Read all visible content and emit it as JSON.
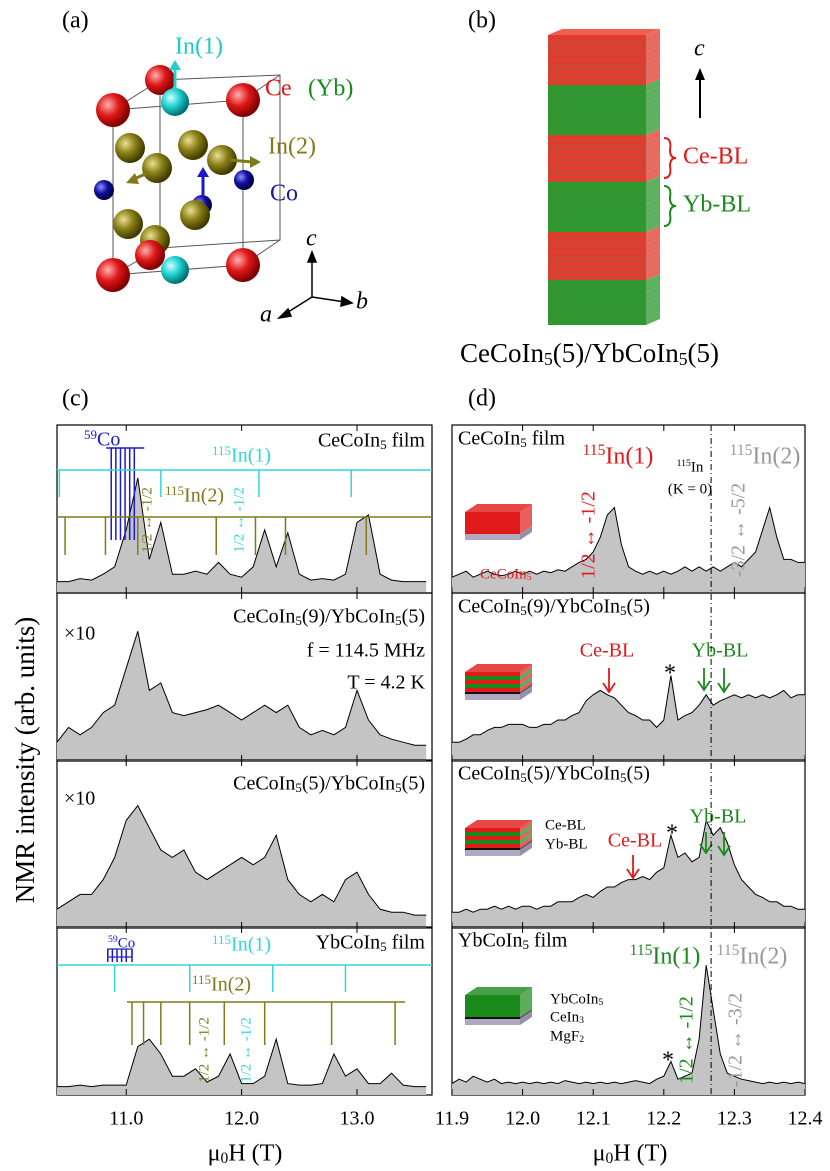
{
  "panel_a": {
    "label": "(a)",
    "in1": "In(1)",
    "ce": "Ce",
    "yb": "(Yb)",
    "in2": "In(2)",
    "co": "Co",
    "axis_c": "c",
    "axis_a": "a",
    "axis_b": "b"
  },
  "panel_b": {
    "label": "(b)",
    "axis_c": "c",
    "ce_bl": "Ce-BL",
    "yb_bl": "Yb-BL",
    "caption": "CeCoIn5(5)/YbCoIn5(5)"
  },
  "chart_data": [
    {
      "type": "line",
      "panel_label": "(c)",
      "y_label": "NMR intensity (arb. units)",
      "x_label": "μ0H (T)",
      "xlim": [
        10.4,
        13.65
      ],
      "xticks": [
        {
          "value": 11,
          "label": "11.0"
        },
        {
          "value": 12,
          "label": "12.0"
        },
        {
          "value": 13,
          "label": "13.0"
        }
      ],
      "ylim": [
        0,
        1
      ],
      "x": [
        10.4,
        10.5,
        10.6,
        10.7,
        10.8,
        10.9,
        11,
        11.1,
        11.2,
        11.3,
        11.4,
        11.5,
        11.6,
        11.7,
        11.8,
        11.9,
        12,
        12.1,
        12.2,
        12.3,
        12.4,
        12.5,
        12.6,
        12.7,
        12.8,
        12.9,
        13,
        13.1,
        13.2,
        13.3,
        13.4,
        13.5,
        13.6
      ],
      "series": [
        {
          "name": "CeCoIn5 film",
          "color": "#c4c4c4",
          "values": [
            0.05,
            0.05,
            0.07,
            0.06,
            0.1,
            0.15,
            0.4,
            0.75,
            0.2,
            0.45,
            0.1,
            0.1,
            0.12,
            0.1,
            0.18,
            0.1,
            0.08,
            0.15,
            0.4,
            0.15,
            0.38,
            0.1,
            0.06,
            0.07,
            0.06,
            0.1,
            0.45,
            0.5,
            0.1,
            0.06,
            0.05,
            0.05,
            0.05
          ],
          "markers": [
            {
              "color": "#1a1acc",
              "positions": [
                10.87,
                10.91,
                10.95,
                10.99,
                11.03,
                11.07
              ]
            },
            {
              "color": "#33d6d6",
              "positions": [
                10.42,
                11.3,
                12.15,
                12.95
              ]
            },
            {
              "color": "#807a1a",
              "positions": [
                10.47,
                10.82,
                11.1,
                11.78,
                12.12,
                12.38,
                13.08
              ]
            }
          ],
          "annotations": [
            {
              "text": "59Co",
              "color": "#1a1acc"
            },
            {
              "text": "115In(1)",
              "color": "#33d6d6"
            },
            {
              "text": "115In(2)",
              "color": "#807a1a"
            },
            {
              "text": "1/2 ↔ -1/2",
              "color": "#807a1a"
            },
            {
              "text": "1/2 ↔ -1/2",
              "color": "#33d6d6"
            }
          ]
        },
        {
          "name": "CeCoIn5(9)/YbCoIn5(5)",
          "color": "#c4c4c4",
          "values": [
            0.1,
            0.2,
            0.15,
            0.2,
            0.3,
            0.35,
            0.6,
            0.85,
            0.45,
            0.5,
            0.3,
            0.28,
            0.3,
            0.32,
            0.35,
            0.3,
            0.25,
            0.3,
            0.35,
            0.3,
            0.35,
            0.2,
            0.15,
            0.18,
            0.15,
            0.2,
            0.45,
            0.25,
            0.15,
            0.12,
            0.1,
            0.08,
            0.08
          ],
          "annotations": [
            {
              "text": "×10",
              "color": "#000000"
            },
            {
              "text": "f = 114.5 MHz",
              "color": "#000000"
            },
            {
              "text": "T = 4.2 K",
              "color": "#000000"
            }
          ]
        },
        {
          "name": "CeCoIn5(5)/YbCoIn5(5)",
          "color": "#c4c4c4",
          "values": [
            0.1,
            0.15,
            0.2,
            0.2,
            0.3,
            0.45,
            0.7,
            0.8,
            0.65,
            0.5,
            0.45,
            0.5,
            0.35,
            0.3,
            0.35,
            0.4,
            0.45,
            0.4,
            0.45,
            0.6,
            0.3,
            0.2,
            0.15,
            0.2,
            0.15,
            0.3,
            0.35,
            0.2,
            0.1,
            0.08,
            0.08,
            0.06,
            0.06
          ],
          "annotations": [
            {
              "text": "×10",
              "color": "#000000"
            }
          ]
        },
        {
          "name": "YbCoIn5 film",
          "color": "#c4c4c4",
          "values": [
            0.03,
            0.03,
            0.04,
            0.03,
            0.04,
            0.04,
            0.04,
            0.3,
            0.35,
            0.25,
            0.1,
            0.1,
            0.15,
            0.06,
            0.1,
            0.25,
            0.05,
            0.05,
            0.1,
            0.35,
            0.05,
            0.04,
            0.04,
            0.05,
            0.25,
            0.1,
            0.15,
            0.05,
            0.05,
            0.12,
            0.04,
            0.03,
            0.03
          ],
          "markers": [
            {
              "color": "#1a1acc",
              "positions": [
                10.84,
                10.88,
                10.92,
                10.96,
                11,
                11.05
              ]
            },
            {
              "color": "#33d6d6",
              "positions": [
                10.9,
                11.55,
                12.27,
                12.9
              ]
            },
            {
              "color": "#807a1a",
              "positions": [
                11.05,
                11.15,
                11.3,
                11.55,
                11.85,
                12.2,
                12.78,
                13.33
              ]
            }
          ],
          "annotations": [
            {
              "text": "59Co",
              "color": "#1a1acc"
            },
            {
              "text": "115In(1)",
              "color": "#33d6d6"
            },
            {
              "text": "115In(2)",
              "color": "#807a1a"
            },
            {
              "text": "1/2 ↔ -1/2",
              "color": "#807a1a"
            },
            {
              "text": "1/2 ↔ -1/2",
              "color": "#33d6d6"
            }
          ]
        }
      ]
    },
    {
      "type": "line",
      "panel_label": "(d)",
      "x_label": "μ0H (T)",
      "xlim": [
        11.9,
        12.4
      ],
      "xticks": [
        11.9,
        {
          "value": 12,
          "label": "12.0"
        },
        12.1,
        12.2,
        12.3,
        12.4
      ],
      "ylim": [
        0,
        1
      ],
      "ref_line": 12.267,
      "x": [
        11.9,
        11.91,
        11.92,
        11.93,
        11.94,
        11.95,
        11.96,
        11.97,
        11.98,
        11.99,
        12,
        12.01,
        12.02,
        12.03,
        12.04,
        12.05,
        12.06,
        12.07,
        12.08,
        12.09,
        12.1,
        12.11,
        12.12,
        12.13,
        12.14,
        12.15,
        12.16,
        12.17,
        12.18,
        12.19,
        12.2,
        12.21,
        12.22,
        12.23,
        12.24,
        12.25,
        12.26,
        12.27,
        12.28,
        12.29,
        12.3,
        12.31,
        12.32,
        12.33,
        12.34,
        12.35,
        12.36,
        12.37,
        12.38,
        12.39,
        12.4
      ],
      "series": [
        {
          "name": "CeCoIn5 film",
          "color": "#c4c4c4",
          "values": [
            0.08,
            0.1,
            0.12,
            0.08,
            0.1,
            0.12,
            0.1,
            0.09,
            0.1,
            0.12,
            0.1,
            0.12,
            0.1,
            0.12,
            0.11,
            0.13,
            0.12,
            0.15,
            0.18,
            0.2,
            0.25,
            0.35,
            0.5,
            0.55,
            0.3,
            0.15,
            0.12,
            0.1,
            0.12,
            0.1,
            0.12,
            0.1,
            0.12,
            0.15,
            0.12,
            0.15,
            0.12,
            0.15,
            0.12,
            0.15,
            0.18,
            0.15,
            0.2,
            0.25,
            0.4,
            0.55,
            0.35,
            0.2,
            0.2,
            0.18,
            0.18
          ],
          "annotations": [
            {
              "text": "115In(1)",
              "color": "#e01a1a"
            },
            {
              "text": "1/2 ↔ -1/2",
              "color": "#e01a1a"
            },
            {
              "text": "115In",
              "color": "#000000"
            },
            {
              "text": "(K = 0)",
              "color": "#000000"
            },
            {
              "text": "115In(2)",
              "color": "#999999"
            },
            {
              "text": "-3/2 ↔ -5/2",
              "color": "#999999"
            },
            {
              "text": "CeCoIn5",
              "color": "#e01a1a"
            }
          ]
        },
        {
          "name": "CeCoIn5(9)/YbCoIn5(5)",
          "color": "#c4c4c4",
          "values": [
            0.1,
            0.1,
            0.12,
            0.15,
            0.15,
            0.18,
            0.2,
            0.2,
            0.22,
            0.22,
            0.22,
            0.2,
            0.2,
            0.22,
            0.22,
            0.25,
            0.25,
            0.28,
            0.3,
            0.38,
            0.42,
            0.45,
            0.42,
            0.4,
            0.35,
            0.3,
            0.28,
            0.25,
            0.25,
            0.2,
            0.25,
            0.55,
            0.25,
            0.28,
            0.3,
            0.35,
            0.42,
            0.35,
            0.38,
            0.4,
            0.42,
            0.4,
            0.42,
            0.4,
            0.42,
            0.4,
            0.42,
            0.45,
            0.4,
            0.42,
            0.42
          ],
          "annotations": [
            {
              "text": "Ce-BL",
              "color": "#e01a1a"
            },
            {
              "text": "Yb-BL",
              "color": "#1a8a1a"
            },
            {
              "text": "*",
              "color": "#000000"
            }
          ]
        },
        {
          "name": "CeCoIn5(5)/YbCoIn5(5)",
          "color": "#c4c4c4",
          "values": [
            0.08,
            0.08,
            0.1,
            0.08,
            0.1,
            0.1,
            0.12,
            0.1,
            0.12,
            0.1,
            0.12,
            0.12,
            0.1,
            0.12,
            0.12,
            0.15,
            0.15,
            0.15,
            0.18,
            0.2,
            0.18,
            0.22,
            0.25,
            0.25,
            0.28,
            0.3,
            0.3,
            0.32,
            0.3,
            0.35,
            0.38,
            0.6,
            0.45,
            0.48,
            0.42,
            0.45,
            0.7,
            0.6,
            0.65,
            0.55,
            0.4,
            0.3,
            0.25,
            0.2,
            0.18,
            0.15,
            0.15,
            0.12,
            0.12,
            0.1,
            0.1
          ],
          "annotations": [
            {
              "text": "Yb-BL",
              "color": "#1a8a1a"
            },
            {
              "text": "*",
              "color": "#000000"
            },
            {
              "text": "Ce-BL",
              "color": "#e01a1a"
            },
            {
              "text": "Ce-BL",
              "color": "#000000"
            },
            {
              "text": "Yb-BL",
              "color": "#000000"
            }
          ]
        },
        {
          "name": "YbCoIn5 film",
          "color": "#c4c4c4",
          "values": [
            0.05,
            0.08,
            0.06,
            0.1,
            0.08,
            0.06,
            0.08,
            0.05,
            0.06,
            0.05,
            0.06,
            0.05,
            0.06,
            0.05,
            0.06,
            0.05,
            0.07,
            0.06,
            0.05,
            0.06,
            0.05,
            0.06,
            0.05,
            0.06,
            0.05,
            0.06,
            0.07,
            0.06,
            0.05,
            0.08,
            0.1,
            0.2,
            0.08,
            0.1,
            0.12,
            0.35,
            0.85,
            0.55,
            0.25,
            0.12,
            0.1,
            0.08,
            0.07,
            0.06,
            0.05,
            0.06,
            0.05,
            0.06,
            0.05,
            0.06,
            0.05
          ],
          "annotations": [
            {
              "text": "115In(1)",
              "color": "#1a8a1a"
            },
            {
              "text": "1/2 ↔ -1/2",
              "color": "#1a8a1a"
            },
            {
              "text": "115In(2)",
              "color": "#999999"
            },
            {
              "text": "-1/2 ↔ -3/2",
              "color": "#999999"
            },
            {
              "text": "*",
              "color": "#000000"
            },
            {
              "text": "YbCoIn5",
              "color": "#000000"
            },
            {
              "text": "CeIn3",
              "color": "#000000"
            },
            {
              "text": "MgF2",
              "color": "#000000"
            }
          ]
        }
      ]
    }
  ]
}
